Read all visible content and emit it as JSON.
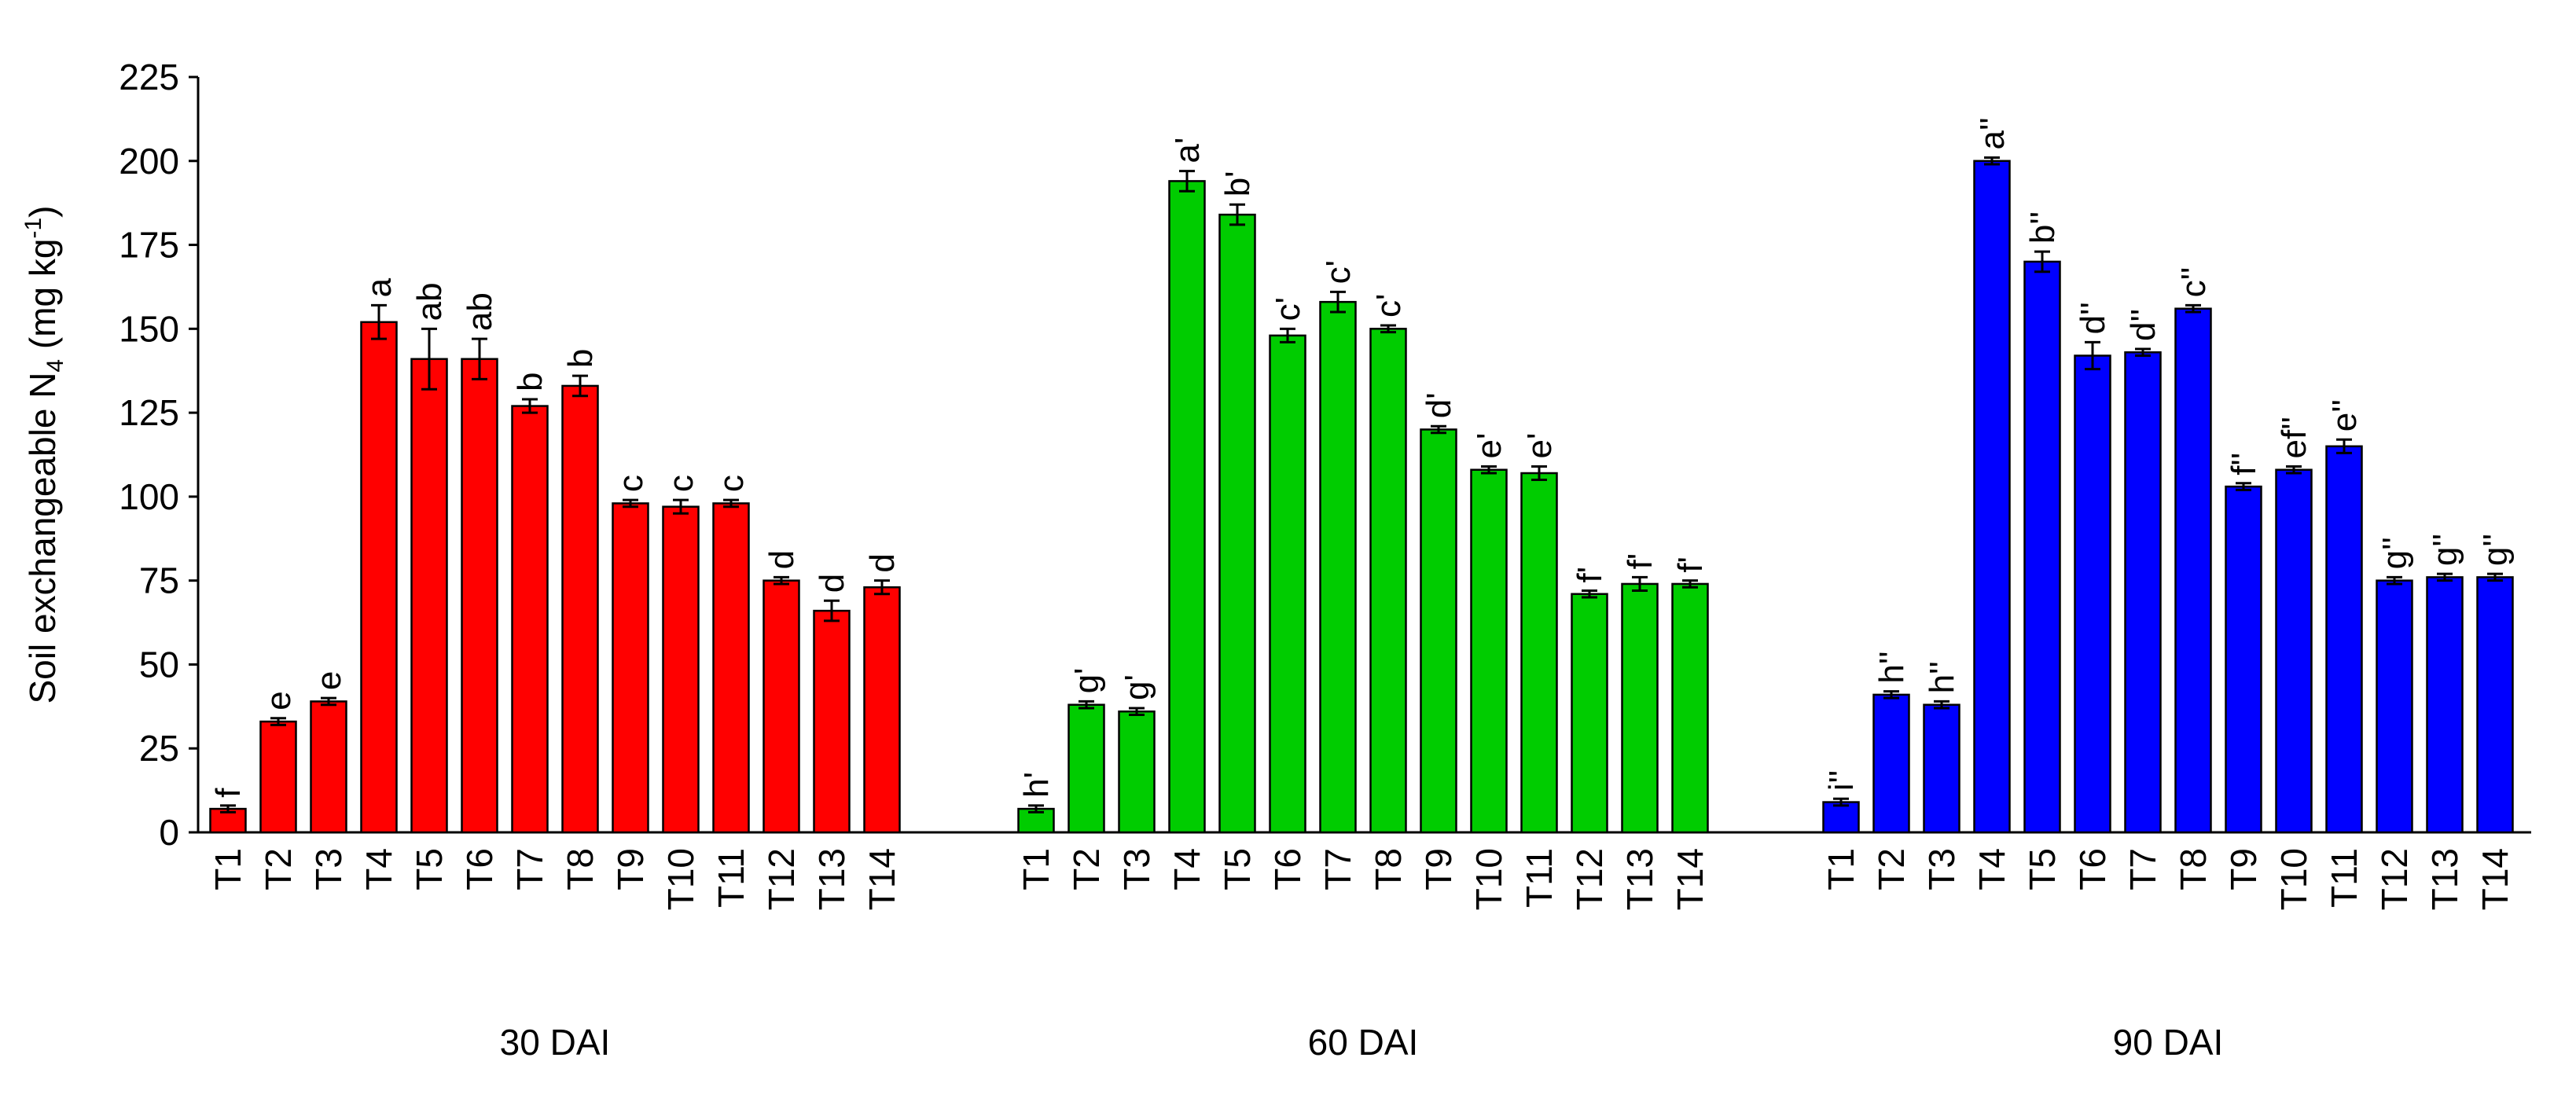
{
  "chart_data": {
    "type": "bar",
    "ylabel": "Soil exchangeable N",
    "ylabel_sub": "4",
    "ylabel_unit_open": " (mg kg",
    "ylabel_unit_sup": "-1",
    "ylabel_unit_close": ")",
    "ylim": [
      0,
      225
    ],
    "yticks": [
      0,
      25,
      50,
      75,
      100,
      125,
      150,
      175,
      200,
      225
    ],
    "categories": [
      "T1",
      "T2",
      "T3",
      "T4",
      "T5",
      "T6",
      "T7",
      "T8",
      "T9",
      "T10",
      "T11",
      "T12",
      "T13",
      "T14"
    ],
    "groups": [
      {
        "name": "30 DAI",
        "color": "#ff0000",
        "values": [
          7,
          33,
          39,
          152,
          141,
          141,
          127,
          133,
          98,
          97,
          98,
          75,
          66,
          73
        ],
        "errors": [
          1,
          1,
          1,
          5,
          9,
          6,
          2,
          3,
          1,
          2,
          1,
          1,
          3,
          2
        ],
        "letters": [
          "f",
          "e",
          "e",
          "a",
          "ab",
          "ab",
          "b",
          "b",
          "c",
          "c",
          "c",
          "d",
          "d",
          "d"
        ]
      },
      {
        "name": "60 DAI",
        "color": "#00cc00",
        "values": [
          7,
          38,
          36,
          194,
          184,
          148,
          158,
          150,
          120,
          108,
          107,
          71,
          74,
          74
        ],
        "errors": [
          1,
          1,
          1,
          3,
          3,
          2,
          3,
          1,
          1,
          1,
          2,
          1,
          2,
          1
        ],
        "letters": [
          "h'",
          "g'",
          "g'",
          "a'",
          "b'",
          "c'",
          "c'",
          "c'",
          "d'",
          "e'",
          "e'",
          "f'",
          "f'",
          "f'"
        ]
      },
      {
        "name": "90 DAI",
        "color": "#0000ff",
        "values": [
          9,
          41,
          38,
          200,
          170,
          142,
          143,
          156,
          103,
          108,
          115,
          75,
          76,
          76
        ],
        "errors": [
          1,
          1,
          1,
          1,
          3,
          4,
          1,
          1,
          1,
          1,
          2,
          1,
          1,
          1
        ],
        "letters": [
          "i''",
          "h''",
          "h''",
          "a''",
          "b''",
          "d''",
          "d''",
          "c''",
          "f''",
          "ef''",
          "e''",
          "g''",
          "g''",
          "g''"
        ]
      }
    ],
    "grid": false,
    "legend": "none"
  }
}
